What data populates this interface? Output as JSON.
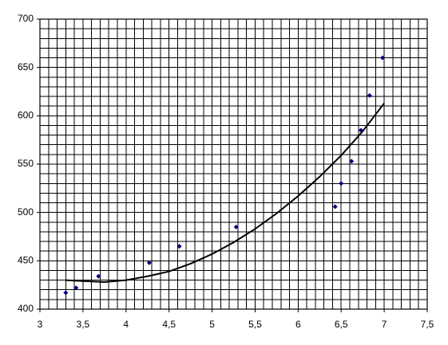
{
  "chart_data": {
    "type": "scatter",
    "points": {
      "x": [
        3.3,
        3.42,
        3.68,
        4.27,
        4.62,
        5.28,
        6.43,
        6.5,
        6.62,
        6.73,
        6.83,
        6.98
      ],
      "values": [
        417,
        422,
        434,
        448,
        465,
        485,
        506,
        530,
        553,
        585,
        621,
        660
      ],
      "color": "#000080"
    },
    "trendline": {
      "x": [
        3.3,
        3.5,
        3.75,
        4,
        4.25,
        4.5,
        4.75,
        5,
        5.25,
        5.5,
        5.75,
        6,
        6.25,
        6.5,
        6.75,
        7
      ],
      "values": [
        430,
        429,
        428,
        430,
        434,
        439,
        447,
        457,
        469,
        483,
        499,
        517,
        537,
        559,
        584,
        613
      ],
      "color": "#000000"
    },
    "xlim": [
      3,
      7.5
    ],
    "xticks": [
      3,
      {
        "value": 3.5,
        "label": "3,5"
      },
      4,
      {
        "value": 4.5,
        "label": "4,5"
      },
      5,
      {
        "value": 5.5,
        "label": "5,5"
      },
      6,
      {
        "value": 6.5,
        "label": "6,5"
      },
      7,
      {
        "value": 7.5,
        "label": "7,5"
      }
    ],
    "ylim": [
      400,
      700
    ],
    "yticks": [
      400,
      450,
      500,
      550,
      600,
      650,
      700
    ],
    "grid": true,
    "minor_grid_step": [
      0.1,
      10
    ]
  }
}
